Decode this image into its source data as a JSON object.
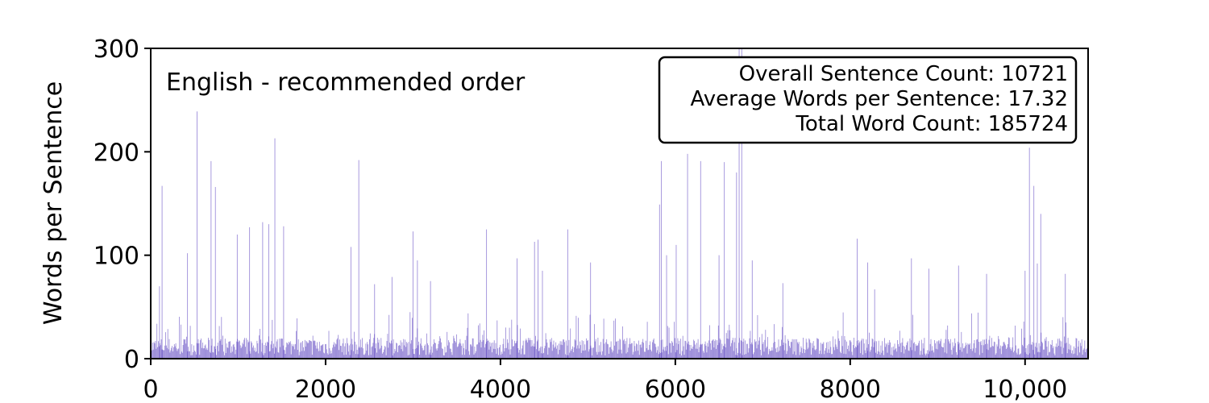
{
  "chart_data": {
    "type": "bar",
    "title": "English - recommended order",
    "xlabel": "",
    "ylabel": "Words per Sentence",
    "xlim": [
      0,
      10721
    ],
    "ylim": [
      0,
      300
    ],
    "x_ticks": [
      0,
      2000,
      4000,
      6000,
      8000,
      10000
    ],
    "x_tick_labels": [
      "0",
      "2000",
      "4000",
      "6000",
      "8000",
      "10,000"
    ],
    "y_ticks": [
      0,
      100,
      200,
      300
    ],
    "y_tick_labels": [
      "0",
      "100",
      "200",
      "300"
    ],
    "bar_color": "#3d1fb5",
    "grid": false,
    "legend": "none",
    "stats_box": {
      "position": "top-right",
      "lines": [
        "Overall Sentence Count: 10721",
        "Average Words per Sentence: 17.32",
        "Total Word Count: 185724"
      ]
    },
    "series": [
      {
        "x": [
          100,
          130,
          420,
          530,
          690,
          740,
          990,
          1130,
          1280,
          1350,
          1420,
          1520,
          2290,
          2380,
          2560,
          2760,
          3000,
          3050,
          3200,
          3840,
          4190,
          4390,
          4430,
          4480,
          4770,
          5030,
          5820,
          5840,
          5900,
          6010,
          6140,
          6290,
          6500,
          6560,
          6700,
          6730,
          6760,
          6880,
          7230,
          8080,
          8200,
          8280,
          8700,
          8900,
          9240,
          9560,
          10000,
          10050,
          10100,
          10140,
          10180,
          10460
        ],
        "values": [
          70,
          167,
          102,
          239,
          191,
          166,
          120,
          127,
          132,
          130,
          213,
          128,
          108,
          192,
          72,
          79,
          123,
          95,
          75,
          125,
          97,
          113,
          115,
          85,
          125,
          93,
          149,
          191,
          100,
          110,
          198,
          191,
          100,
          190,
          180,
          300,
          300,
          95,
          73,
          116,
          93,
          67,
          97,
          87,
          90,
          82,
          85,
          204,
          167,
          92,
          140,
          82
        ]
      }
    ]
  }
}
